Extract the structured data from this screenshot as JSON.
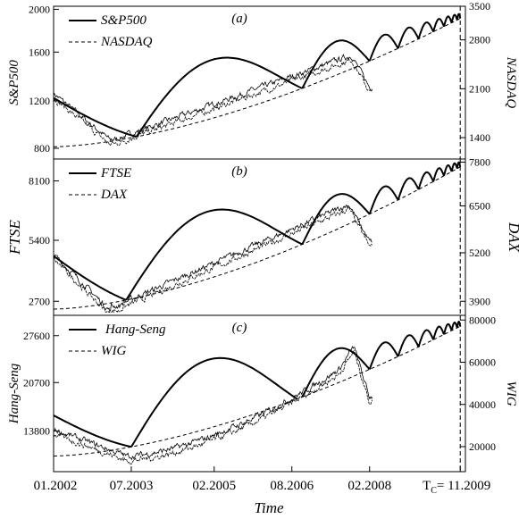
{
  "chart_data": [
    {
      "type": "line",
      "panel": "(a)",
      "ylabel_left": "S&P500",
      "ylabel_right": "NASDAQ",
      "left_ticks": [
        "800",
        "1200",
        "1600",
        "2000"
      ],
      "right_ticks": [
        "1400",
        "2100",
        "2800",
        "3500"
      ],
      "series": [
        {
          "name": "S&P500",
          "style": "solid"
        },
        {
          "name": "NASDAQ",
          "style": "dashed"
        }
      ]
    },
    {
      "type": "line",
      "panel": "(b)",
      "ylabel_left": "FTSE",
      "ylabel_right": "DAX",
      "left_ticks": [
        "2700",
        "5400",
        "8100"
      ],
      "right_ticks": [
        "3900",
        "5200",
        "6500",
        "7800"
      ],
      "series": [
        {
          "name": "FTSE",
          "style": "solid"
        },
        {
          "name": "DAX",
          "style": "dashed"
        }
      ]
    },
    {
      "type": "line",
      "panel": "(c)",
      "ylabel_left": "Hang-Seng",
      "ylabel_right": "WIG",
      "left_ticks": [
        "13800",
        "20700",
        "27600"
      ],
      "right_ticks": [
        "20000",
        "40000",
        "60000",
        "80000"
      ],
      "series": [
        {
          "name": "Hang-Seng",
          "style": "solid"
        },
        {
          "name": "WIG",
          "style": "dashed"
        }
      ]
    }
  ],
  "x_axis": {
    "title": "Time",
    "ticks": [
      {
        "label": "01.2002",
        "t": 2002.0
      },
      {
        "label": "07.2003",
        "t": 2003.5
      },
      {
        "label": "02.2005",
        "t": 2005.1
      },
      {
        "label": "08.2006",
        "t": 2006.6
      },
      {
        "label": "02.2008",
        "t": 2008.1
      },
      {
        "label": "T",
        "sub": "C",
        "rest": "= 11.2009",
        "t": 2009.85
      }
    ],
    "range": [
      2002.0,
      2009.95
    ]
  },
  "critical_time": 2009.85
}
